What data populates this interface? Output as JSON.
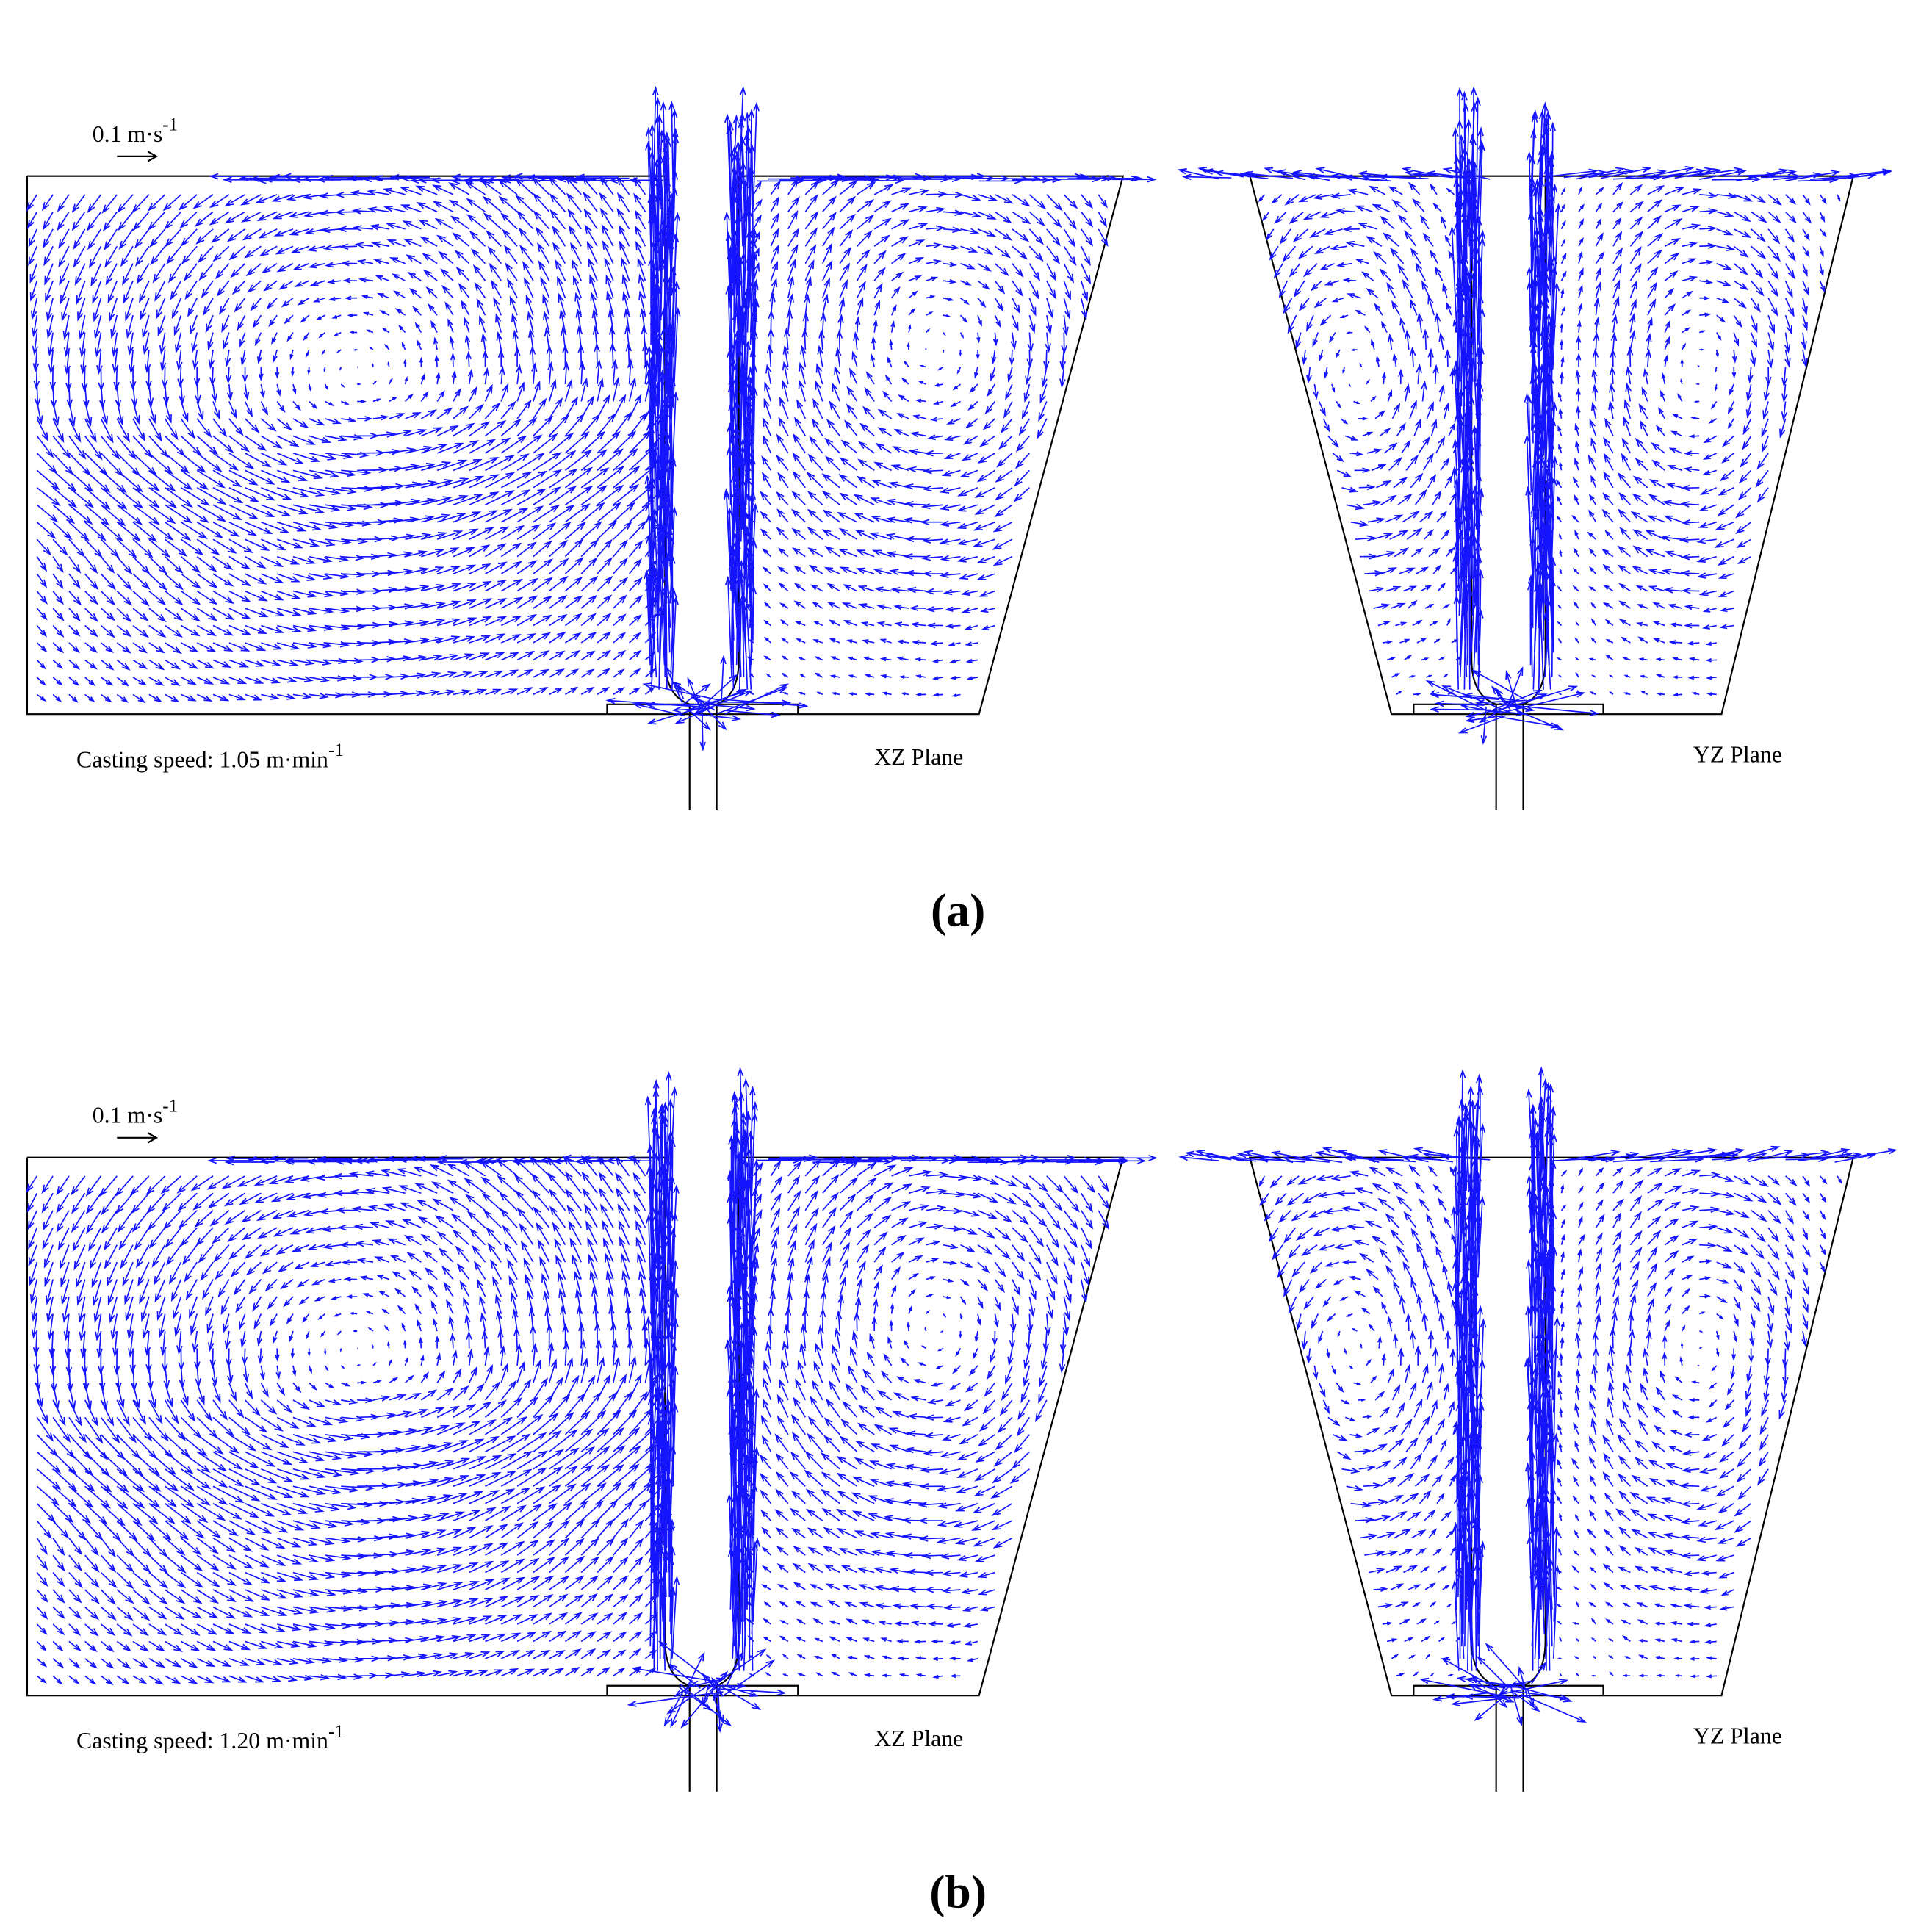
{
  "panels": [
    {
      "scale_label": {
        "text": "0.1 m·s",
        "sup": "-1"
      },
      "casting_speed": {
        "text": "Casting speed: 1.05 m·min",
        "sup": "-1"
      },
      "xz_label": "XZ Plane",
      "yz_label": "YZ Plane",
      "caption": "(a)"
    },
    {
      "scale_label": {
        "text": "0.1 m·s",
        "sup": "-1"
      },
      "casting_speed": {
        "text": "Casting speed: 1.20 m·min",
        "sup": "-1"
      },
      "xz_label": "XZ Plane",
      "yz_label": "YZ Plane",
      "caption": "(b)"
    }
  ]
}
